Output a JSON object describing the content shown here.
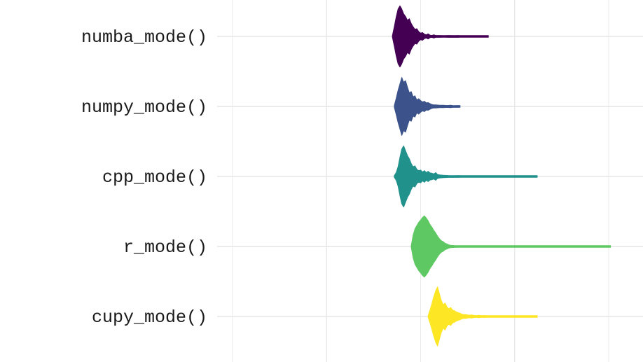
{
  "chart_data": {
    "type": "violin",
    "orientation": "horizontal",
    "title": "",
    "xlabel": "",
    "ylabel": "",
    "xlim": [
      0,
      215
    ],
    "x_gridlines_major": [
      50,
      150
    ],
    "x_gridlines_minor": [
      0,
      100,
      200
    ],
    "grid": true,
    "legend": "none",
    "categories": [
      "numba_mode()",
      "numpy_mode()",
      "cpp_mode()",
      "r_mode()",
      "cupy_mode()"
    ],
    "series": [
      {
        "category": "numba_mode()",
        "color": "#440154",
        "profile": [
          [
            85,
            0.02
          ],
          [
            86,
            0.3
          ],
          [
            87,
            0.6
          ],
          [
            88,
            0.85
          ],
          [
            89,
            0.95
          ],
          [
            90,
            0.85
          ],
          [
            91,
            0.7
          ],
          [
            92,
            0.62
          ],
          [
            93,
            0.5
          ],
          [
            94,
            0.55
          ],
          [
            95,
            0.4
          ],
          [
            96,
            0.3
          ],
          [
            97,
            0.22
          ],
          [
            98,
            0.24
          ],
          [
            99,
            0.15
          ],
          [
            100,
            0.1
          ],
          [
            101,
            0.12
          ],
          [
            102,
            0.07
          ],
          [
            103,
            0.05
          ],
          [
            104,
            0.08
          ],
          [
            105,
            0.04
          ],
          [
            106,
            0.03
          ],
          [
            107,
            0.05
          ],
          [
            108,
            0.03
          ],
          [
            110,
            0.03
          ],
          [
            112,
            0.02
          ],
          [
            115,
            0.03
          ],
          [
            118,
            0.02
          ],
          [
            120,
            0.03
          ],
          [
            121,
            0.02
          ],
          [
            124,
            0.02
          ],
          [
            125,
            0.02
          ],
          [
            133,
            0.01
          ],
          [
            135,
            0.02
          ],
          [
            136,
            0.01
          ]
        ]
      },
      {
        "category": "numpy_mode()",
        "color": "#3b528b",
        "profile": [
          [
            86,
            0.02
          ],
          [
            87,
            0.25
          ],
          [
            88,
            0.5
          ],
          [
            89,
            0.7
          ],
          [
            90,
            0.9
          ],
          [
            91,
            0.75
          ],
          [
            92,
            0.8
          ],
          [
            93,
            0.6
          ],
          [
            94,
            0.42
          ],
          [
            95,
            0.46
          ],
          [
            96,
            0.3
          ],
          [
            97,
            0.33
          ],
          [
            98,
            0.2
          ],
          [
            99,
            0.24
          ],
          [
            100,
            0.18
          ],
          [
            101,
            0.14
          ],
          [
            102,
            0.16
          ],
          [
            103,
            0.11
          ],
          [
            104,
            0.12
          ],
          [
            105,
            0.09
          ],
          [
            106,
            0.06
          ],
          [
            107,
            0.05
          ],
          [
            108,
            0.05
          ],
          [
            110,
            0.04
          ],
          [
            112,
            0.04
          ],
          [
            114,
            0.03
          ],
          [
            116,
            0.04
          ],
          [
            117,
            0.03
          ],
          [
            118,
            0.02
          ],
          [
            120,
            0.03
          ],
          [
            121,
            0.02
          ]
        ]
      },
      {
        "category": "cpp_mode()",
        "color": "#21918c",
        "profile": [
          [
            86,
            0.02
          ],
          [
            87,
            0.12
          ],
          [
            88,
            0.3
          ],
          [
            89,
            0.6
          ],
          [
            90,
            0.85
          ],
          [
            91,
            0.95
          ],
          [
            92,
            0.8
          ],
          [
            93,
            0.65
          ],
          [
            94,
            0.55
          ],
          [
            95,
            0.4
          ],
          [
            96,
            0.3
          ],
          [
            97,
            0.33
          ],
          [
            98,
            0.22
          ],
          [
            99,
            0.18
          ],
          [
            100,
            0.2
          ],
          [
            101,
            0.14
          ],
          [
            102,
            0.18
          ],
          [
            103,
            0.12
          ],
          [
            104,
            0.16
          ],
          [
            105,
            0.11
          ],
          [
            106,
            0.1
          ],
          [
            107,
            0.08
          ],
          [
            108,
            0.12
          ],
          [
            109,
            0.06
          ],
          [
            110,
            0.05
          ],
          [
            112,
            0.04
          ],
          [
            115,
            0.03
          ],
          [
            118,
            0.02
          ],
          [
            120,
            0.03
          ],
          [
            122,
            0.02
          ],
          [
            125,
            0.02
          ],
          [
            128,
            0.02
          ],
          [
            130,
            0.02
          ],
          [
            132,
            0.01
          ],
          [
            135,
            0.02
          ],
          [
            138,
            0.01
          ],
          [
            142,
            0.02
          ],
          [
            144,
            0.01
          ],
          [
            148,
            0.01
          ],
          [
            152,
            0.01
          ],
          [
            155,
            0.01
          ],
          [
            160,
            0.01
          ],
          [
            162,
            0.01
          ]
        ]
      },
      {
        "category": "r_mode()",
        "color": "#5ec962",
        "profile": [
          [
            95,
            0.02
          ],
          [
            96,
            0.35
          ],
          [
            97,
            0.55
          ],
          [
            98,
            0.65
          ],
          [
            99,
            0.75
          ],
          [
            100,
            0.82
          ],
          [
            101,
            0.9
          ],
          [
            102,
            0.95
          ],
          [
            103,
            0.88
          ],
          [
            104,
            0.8
          ],
          [
            105,
            0.68
          ],
          [
            106,
            0.6
          ],
          [
            107,
            0.5
          ],
          [
            108,
            0.42
          ],
          [
            109,
            0.32
          ],
          [
            110,
            0.24
          ],
          [
            111,
            0.18
          ],
          [
            112,
            0.15
          ],
          [
            113,
            0.1
          ],
          [
            114,
            0.08
          ],
          [
            115,
            0.05
          ],
          [
            116,
            0.04
          ],
          [
            118,
            0.03
          ],
          [
            120,
            0.02
          ],
          [
            122,
            0.02
          ],
          [
            125,
            0.02
          ],
          [
            128,
            0.01
          ],
          [
            130,
            0.02
          ],
          [
            135,
            0.01
          ],
          [
            140,
            0.02
          ],
          [
            142,
            0.01
          ],
          [
            145,
            0.02
          ],
          [
            150,
            0.01
          ],
          [
            165,
            0.01
          ],
          [
            167,
            0.01
          ],
          [
            200,
            0.01
          ],
          [
            201,
            0.01
          ]
        ]
      },
      {
        "category": "cupy_mode()",
        "color": "#fde725",
        "profile": [
          [
            104,
            0.02
          ],
          [
            105,
            0.2
          ],
          [
            106,
            0.4
          ],
          [
            107,
            0.62
          ],
          [
            108,
            0.8
          ],
          [
            109,
            0.92
          ],
          [
            110,
            0.7
          ],
          [
            111,
            0.5
          ],
          [
            112,
            0.36
          ],
          [
            113,
            0.42
          ],
          [
            114,
            0.3
          ],
          [
            115,
            0.24
          ],
          [
            116,
            0.28
          ],
          [
            117,
            0.2
          ],
          [
            118,
            0.18
          ],
          [
            119,
            0.14
          ],
          [
            120,
            0.12
          ],
          [
            121,
            0.1
          ],
          [
            122,
            0.07
          ],
          [
            123,
            0.06
          ],
          [
            124,
            0.06
          ],
          [
            125,
            0.05
          ],
          [
            126,
            0.04
          ],
          [
            127,
            0.05
          ],
          [
            128,
            0.04
          ],
          [
            129,
            0.03
          ],
          [
            130,
            0.03
          ],
          [
            131,
            0.04
          ],
          [
            132,
            0.02
          ],
          [
            134,
            0.03
          ],
          [
            135,
            0.02
          ],
          [
            138,
            0.02
          ],
          [
            140,
            0.02
          ],
          [
            142,
            0.01
          ],
          [
            145,
            0.01
          ],
          [
            150,
            0.01
          ],
          [
            155,
            0.01
          ],
          [
            160,
            0.01
          ],
          [
            162,
            0.01
          ]
        ]
      }
    ]
  }
}
